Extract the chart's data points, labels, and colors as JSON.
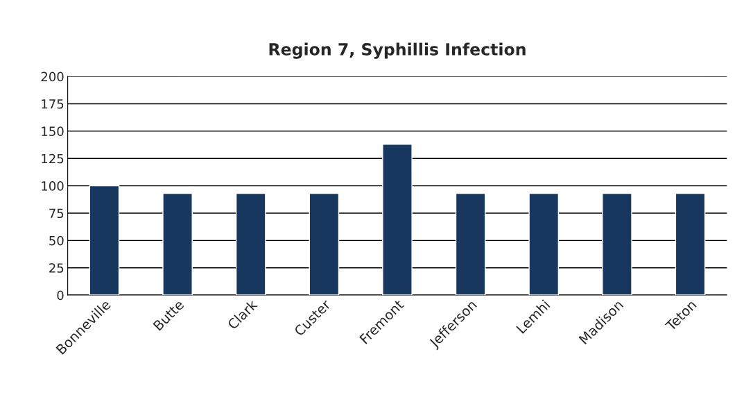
{
  "chart_data": {
    "type": "bar",
    "title": "Region 7, Syphillis Infection",
    "categories": [
      "Bonneville",
      "Butte",
      "Clark",
      "Custer",
      "Fremont",
      "Jefferson",
      "Lemhi",
      "Madison",
      "Teton"
    ],
    "values": [
      100,
      93,
      93,
      93,
      138,
      93,
      93,
      93,
      93
    ],
    "color": "#17375e",
    "ylim": [
      0,
      200
    ],
    "yticks": [
      0,
      25,
      50,
      75,
      100,
      125,
      150,
      175,
      200
    ],
    "grid": "y",
    "legend": false
  }
}
